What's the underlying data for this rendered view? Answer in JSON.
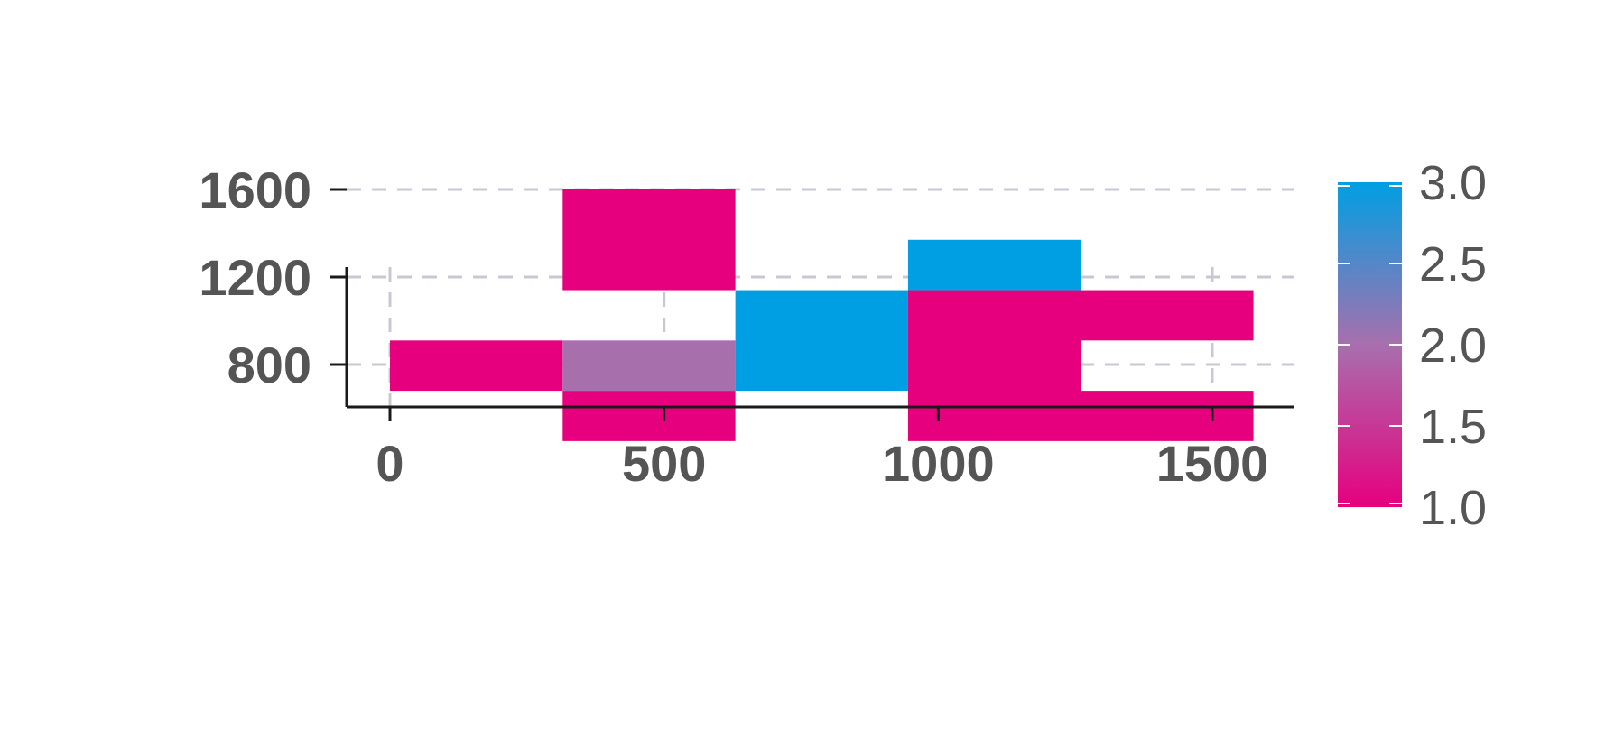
{
  "chart_data": {
    "type": "heatmap",
    "title": "",
    "xlabel": "",
    "ylabel": "",
    "xlim": [
      -80,
      1650
    ],
    "ylim": [
      500,
      1660
    ],
    "x_ticks": [
      "0",
      "500",
      "1000",
      "1500"
    ],
    "x_tick_values": [
      0,
      500,
      1000,
      1500
    ],
    "y_ticks": [
      "800",
      "1200",
      "1600"
    ],
    "y_tick_values": [
      800,
      1200,
      1600
    ],
    "grid": true,
    "colorbar": {
      "range": [
        1.0,
        3.0
      ],
      "ticks": [
        "1.0",
        "1.5",
        "2.0",
        "2.5",
        "3.0"
      ],
      "tick_values": [
        1.0,
        1.5,
        2.0,
        2.5,
        3.0
      ],
      "color_low": "#e6007e",
      "color_mid": "#a86fad",
      "color_high": "#009fe3"
    },
    "cells": [
      {
        "x0": 0,
        "x1": 315,
        "y0": 680,
        "y1": 910,
        "value": 1.0
      },
      {
        "x0": 315,
        "x1": 630,
        "y0": 680,
        "y1": 910,
        "value": 2.0
      },
      {
        "x0": 315,
        "x1": 630,
        "y0": 450,
        "y1": 680,
        "value": 1.0
      },
      {
        "x0": 315,
        "x1": 630,
        "y0": 1140,
        "y1": 1600,
        "value": 1.0
      },
      {
        "x0": 630,
        "x1": 945,
        "y0": 680,
        "y1": 1140,
        "value": 3.0
      },
      {
        "x0": 945,
        "x1": 1260,
        "y0": 1140,
        "y1": 1370,
        "value": 3.0
      },
      {
        "x0": 945,
        "x1": 1260,
        "y0": 450,
        "y1": 1140,
        "value": 1.0
      },
      {
        "x0": 1260,
        "x1": 1575,
        "y0": 910,
        "y1": 1140,
        "value": 1.0
      },
      {
        "x0": 1260,
        "x1": 1575,
        "y0": 450,
        "y1": 680,
        "value": 1.0
      }
    ]
  }
}
